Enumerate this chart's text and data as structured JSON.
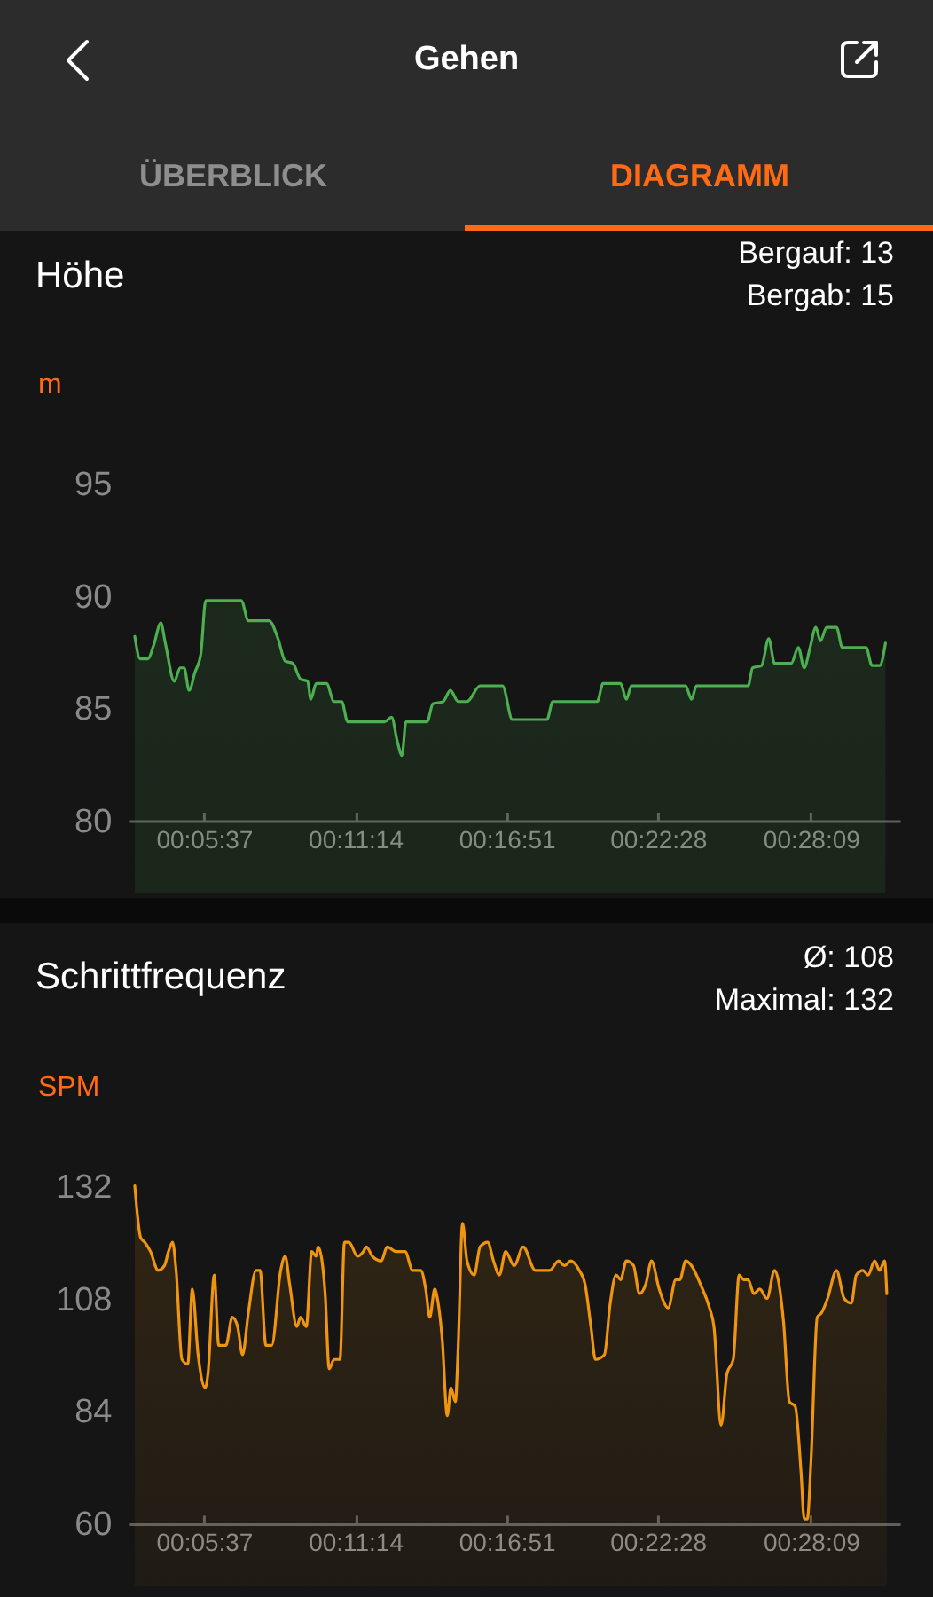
{
  "chart_data": [
    {
      "type": "other",
      "title": "Gehen",
      "annotations": [
        "ÜBERBLICK",
        "DIAGRAMM"
      ]
    },
    {
      "type": "area",
      "title": "Höhe",
      "ylabel": "m",
      "annotations": [
        "Bergauf: 13",
        "Bergab: 15"
      ],
      "x": [
        183,
        195,
        212,
        225,
        241,
        251,
        271,
        284,
        293,
        304,
        317,
        330,
        341,
        420,
        436,
        482,
        502,
        518,
        535,
        552,
        568,
        575,
        587,
        610,
        627,
        644,
        657,
        739,
        755,
        768,
        778,
        787,
        834,
        847,
        870,
        886,
        903,
        923,
        952,
        1002,
        1024,
        1101,
        1114,
        1213,
        1226,
        1265,
        1278,
        1289,
        1410,
        1423,
        1434,
        1549,
        1559,
        1579,
        1595,
        1608,
        1645,
        1661,
        1674,
        1687,
        1700,
        1710,
        1724,
        1746,
        1759,
        1812,
        1825,
        1842,
        1855
      ],
      "series": [
        {
          "color": "#4caf50",
          "values": [
            88.2,
            87.2,
            87.2,
            87.8,
            88.8,
            87.9,
            86.2,
            86.8,
            86.8,
            85.8,
            86.6,
            87.4,
            89.8,
            89.8,
            88.9,
            88.9,
            88.1,
            87.1,
            87.0,
            86.3,
            86.2,
            85.4,
            86.1,
            86.1,
            85.3,
            85.3,
            84.4,
            84.4,
            84.6,
            83.5,
            82.9,
            84.4,
            84.4,
            85.2,
            85.3,
            85.8,
            85.3,
            85.3,
            86.0,
            86.0,
            84.5,
            84.5,
            85.3,
            85.3,
            86.1,
            86.1,
            85.4,
            86.0,
            86.0,
            85.4,
            86.0,
            86.0,
            86.8,
            86.9,
            88.1,
            87.0,
            87.0,
            87.7,
            86.8,
            87.7,
            88.6,
            88.0,
            88.6,
            88.6,
            87.7,
            87.7,
            86.9,
            86.9,
            87.9
          ]
        }
      ],
      "xlim": [
        170,
        1887
      ],
      "xticks": [
        {
          "value": 337,
          "label": "00:05:37"
        },
        {
          "value": 674,
          "label": "00:11:14"
        },
        {
          "value": 1011,
          "label": "00:16:51"
        },
        {
          "value": 1348,
          "label": "00:22:28"
        },
        {
          "value": 1689,
          "label": "00:28:09"
        }
      ],
      "ylim": [
        80,
        95
      ],
      "yticks": [
        80,
        85,
        90,
        95
      ]
    },
    {
      "type": "area",
      "title": "Schrittfrequenz",
      "ylabel": "SPM",
      "annotations": [
        "Ø: 108",
        "Maximal: 132"
      ],
      "x": [
        183,
        196,
        205,
        218,
        235,
        249,
        258,
        267,
        275,
        288,
        301,
        311,
        324,
        340,
        346,
        360,
        370,
        386,
        400,
        412,
        423,
        436,
        453,
        462,
        475,
        488,
        508,
        518,
        528,
        544,
        552,
        565,
        577,
        587,
        591,
        600,
        607,
        616,
        627,
        640,
        650,
        660,
        679,
        692,
        699,
        712,
        732,
        745,
        765,
        785,
        802,
        820,
        831,
        840,
        851,
        857,
        868,
        879,
        887,
        897,
        903,
        913,
        923,
        939,
        952,
        969,
        982,
        995,
        1009,
        1028,
        1048,
        1075,
        1107,
        1127,
        1140,
        1154,
        1173,
        1186,
        1199,
        1209,
        1229,
        1242,
        1255,
        1265,
        1278,
        1294,
        1307,
        1321,
        1334,
        1351,
        1371,
        1388,
        1397,
        1410,
        1423,
        1443,
        1463,
        1473,
        1489,
        1502,
        1516,
        1529,
        1539,
        1549,
        1562,
        1575,
        1591,
        1608,
        1628,
        1641,
        1654,
        1667,
        1674,
        1681,
        1689,
        1703,
        1713,
        1726,
        1746,
        1763,
        1779,
        1790,
        1805,
        1816,
        1831,
        1842,
        1853,
        1858
      ],
      "series": [
        {
          "color": "#f0950f",
          "values": [
            132,
            121,
            120,
            118,
            114,
            115,
            118,
            120,
            114,
            95,
            94,
            110,
            96,
            89,
            92,
            113,
            98,
            98,
            104,
            102,
            96,
            105,
            114,
            114,
            98,
            98,
            114,
            117,
            111,
            102,
            104,
            102,
            118,
            117,
            119,
            116,
            109,
            93,
            95,
            95,
            120,
            120,
            117,
            118,
            119,
            117,
            116,
            119,
            118,
            118,
            114,
            114,
            110,
            104,
            110,
            108,
            99,
            83,
            89,
            86,
            97,
            124,
            116,
            113,
            119,
            120,
            116,
            113,
            118,
            115,
            119,
            114,
            114,
            116,
            115,
            116,
            114,
            111,
            102,
            95,
            96,
            107,
            113,
            112,
            116,
            115,
            109,
            111,
            116,
            110,
            106,
            112,
            112,
            116,
            115,
            111,
            106,
            102,
            81,
            92,
            95,
            113,
            112,
            112,
            109,
            110,
            108,
            114,
            103,
            86,
            85,
            71,
            61,
            61,
            73,
            104,
            105,
            108,
            114,
            108,
            107,
            113,
            114,
            113,
            116,
            114,
            116,
            109
          ]
        }
      ],
      "xlim": [
        170,
        1887
      ],
      "xticks": [
        {
          "value": 337,
          "label": "00:05:37"
        },
        {
          "value": 674,
          "label": "00:11:14"
        },
        {
          "value": 1011,
          "label": "00:16:51"
        },
        {
          "value": 1348,
          "label": "00:22:28"
        },
        {
          "value": 1689,
          "label": "00:28:09"
        }
      ],
      "ylim": [
        60,
        132
      ],
      "yticks": [
        60,
        84,
        108,
        132
      ]
    }
  ]
}
